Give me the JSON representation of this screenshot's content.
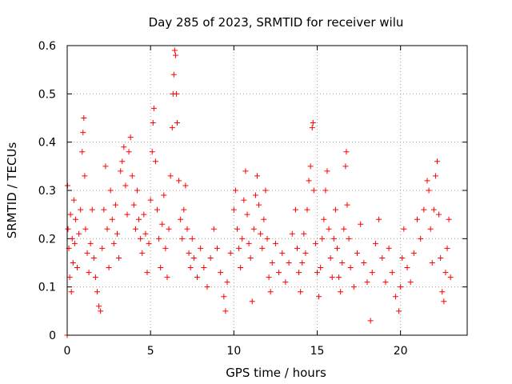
{
  "chart_data": {
    "type": "scatter",
    "title": "Day 285 of 2023, SRMTID for receiver wilu",
    "xlabel": "GPS time / hours",
    "ylabel": "SRMTID / TECUs",
    "xlim": [
      0,
      24
    ],
    "ylim": [
      0,
      0.6
    ],
    "grid": true,
    "marker": "plus",
    "series_color": "#ff0000",
    "x_ticks": [
      0,
      5,
      10,
      15,
      20
    ],
    "x_tick_labels": [
      "0",
      "5",
      "10",
      "15",
      "20"
    ],
    "y_ticks": [
      0,
      0.1,
      0.2,
      0.3,
      0.4,
      0.5,
      0.6
    ],
    "y_tick_labels": [
      "0",
      "0.1",
      "0.2",
      "0.3",
      "0.4",
      "0.5",
      "0.6"
    ],
    "series": [
      {
        "name": "SRMTID",
        "points": [
          [
            0.0,
            0.0
          ],
          [
            0.02,
            0.31
          ],
          [
            0.05,
            0.22
          ],
          [
            0.1,
            0.18
          ],
          [
            0.15,
            0.12
          ],
          [
            0.2,
            0.25
          ],
          [
            0.25,
            0.09
          ],
          [
            0.3,
            0.2
          ],
          [
            0.35,
            0.15
          ],
          [
            0.4,
            0.28
          ],
          [
            0.45,
            0.19
          ],
          [
            0.5,
            0.24
          ],
          [
            0.6,
            0.14
          ],
          [
            0.7,
            0.21
          ],
          [
            0.8,
            0.26
          ],
          [
            0.9,
            0.38
          ],
          [
            0.95,
            0.42
          ],
          [
            1.0,
            0.45
          ],
          [
            1.05,
            0.33
          ],
          [
            1.1,
            0.22
          ],
          [
            1.2,
            0.17
          ],
          [
            1.3,
            0.13
          ],
          [
            1.4,
            0.19
          ],
          [
            1.5,
            0.26
          ],
          [
            1.6,
            0.16
          ],
          [
            1.7,
            0.12
          ],
          [
            1.8,
            0.09
          ],
          [
            1.9,
            0.06
          ],
          [
            2.0,
            0.05
          ],
          [
            2.1,
            0.18
          ],
          [
            2.2,
            0.26
          ],
          [
            2.3,
            0.35
          ],
          [
            2.4,
            0.22
          ],
          [
            2.5,
            0.14
          ],
          [
            2.6,
            0.3
          ],
          [
            2.7,
            0.24
          ],
          [
            2.8,
            0.19
          ],
          [
            2.9,
            0.27
          ],
          [
            3.0,
            0.21
          ],
          [
            3.1,
            0.16
          ],
          [
            3.2,
            0.34
          ],
          [
            3.3,
            0.36
          ],
          [
            3.4,
            0.39
          ],
          [
            3.5,
            0.31
          ],
          [
            3.6,
            0.25
          ],
          [
            3.7,
            0.38
          ],
          [
            3.8,
            0.41
          ],
          [
            3.9,
            0.33
          ],
          [
            4.0,
            0.27
          ],
          [
            4.1,
            0.22
          ],
          [
            4.2,
            0.3
          ],
          [
            4.3,
            0.24
          ],
          [
            4.4,
            0.2
          ],
          [
            4.5,
            0.17
          ],
          [
            4.6,
            0.25
          ],
          [
            4.7,
            0.21
          ],
          [
            4.8,
            0.13
          ],
          [
            4.9,
            0.19
          ],
          [
            5.0,
            0.28
          ],
          [
            5.1,
            0.38
          ],
          [
            5.15,
            0.44
          ],
          [
            5.2,
            0.47
          ],
          [
            5.3,
            0.36
          ],
          [
            5.4,
            0.26
          ],
          [
            5.5,
            0.2
          ],
          [
            5.6,
            0.14
          ],
          [
            5.7,
            0.23
          ],
          [
            5.8,
            0.29
          ],
          [
            5.9,
            0.18
          ],
          [
            6.0,
            0.12
          ],
          [
            6.1,
            0.22
          ],
          [
            6.2,
            0.33
          ],
          [
            6.3,
            0.43
          ],
          [
            6.35,
            0.5
          ],
          [
            6.4,
            0.54
          ],
          [
            6.45,
            0.59
          ],
          [
            6.5,
            0.58
          ],
          [
            6.55,
            0.5
          ],
          [
            6.6,
            0.44
          ],
          [
            6.7,
            0.32
          ],
          [
            6.8,
            0.24
          ],
          [
            6.9,
            0.2
          ],
          [
            7.0,
            0.26
          ],
          [
            7.1,
            0.31
          ],
          [
            7.2,
            0.22
          ],
          [
            7.3,
            0.17
          ],
          [
            7.4,
            0.14
          ],
          [
            7.5,
            0.2
          ],
          [
            7.6,
            0.16
          ],
          [
            7.8,
            0.12
          ],
          [
            8.0,
            0.18
          ],
          [
            8.2,
            0.14
          ],
          [
            8.4,
            0.1
          ],
          [
            8.6,
            0.16
          ],
          [
            8.8,
            0.22
          ],
          [
            9.0,
            0.18
          ],
          [
            9.2,
            0.13
          ],
          [
            9.4,
            0.08
          ],
          [
            9.5,
            0.05
          ],
          [
            9.6,
            0.11
          ],
          [
            9.8,
            0.17
          ],
          [
            10.0,
            0.26
          ],
          [
            10.1,
            0.3
          ],
          [
            10.2,
            0.22
          ],
          [
            10.3,
            0.18
          ],
          [
            10.4,
            0.14
          ],
          [
            10.5,
            0.2
          ],
          [
            10.6,
            0.28
          ],
          [
            10.7,
            0.34
          ],
          [
            10.8,
            0.25
          ],
          [
            10.9,
            0.19
          ],
          [
            11.0,
            0.16
          ],
          [
            11.1,
            0.07
          ],
          [
            11.2,
            0.22
          ],
          [
            11.3,
            0.29
          ],
          [
            11.4,
            0.33
          ],
          [
            11.5,
            0.27
          ],
          [
            11.6,
            0.21
          ],
          [
            11.7,
            0.18
          ],
          [
            11.8,
            0.24
          ],
          [
            11.9,
            0.3
          ],
          [
            12.0,
            0.2
          ],
          [
            12.1,
            0.12
          ],
          [
            12.2,
            0.09
          ],
          [
            12.3,
            0.15
          ],
          [
            12.5,
            0.19
          ],
          [
            12.7,
            0.13
          ],
          [
            12.9,
            0.17
          ],
          [
            13.1,
            0.11
          ],
          [
            13.3,
            0.15
          ],
          [
            13.5,
            0.21
          ],
          [
            13.7,
            0.26
          ],
          [
            13.8,
            0.18
          ],
          [
            13.9,
            0.13
          ],
          [
            14.0,
            0.09
          ],
          [
            14.1,
            0.15
          ],
          [
            14.2,
            0.21
          ],
          [
            14.3,
            0.17
          ],
          [
            14.4,
            0.26
          ],
          [
            14.5,
            0.32
          ],
          [
            14.6,
            0.35
          ],
          [
            14.7,
            0.43
          ],
          [
            14.75,
            0.44
          ],
          [
            14.8,
            0.3
          ],
          [
            14.9,
            0.19
          ],
          [
            15.0,
            0.13
          ],
          [
            15.1,
            0.08
          ],
          [
            15.2,
            0.14
          ],
          [
            15.3,
            0.2
          ],
          [
            15.4,
            0.24
          ],
          [
            15.5,
            0.3
          ],
          [
            15.6,
            0.34
          ],
          [
            15.7,
            0.22
          ],
          [
            15.8,
            0.16
          ],
          [
            15.9,
            0.12
          ],
          [
            16.0,
            0.2
          ],
          [
            16.1,
            0.26
          ],
          [
            16.2,
            0.18
          ],
          [
            16.3,
            0.12
          ],
          [
            16.4,
            0.09
          ],
          [
            16.5,
            0.15
          ],
          [
            16.6,
            0.22
          ],
          [
            16.7,
            0.35
          ],
          [
            16.75,
            0.38
          ],
          [
            16.8,
            0.27
          ],
          [
            16.9,
            0.2
          ],
          [
            17.0,
            0.14
          ],
          [
            17.2,
            0.1
          ],
          [
            17.4,
            0.17
          ],
          [
            17.6,
            0.23
          ],
          [
            17.8,
            0.15
          ],
          [
            18.0,
            0.11
          ],
          [
            18.2,
            0.03
          ],
          [
            18.3,
            0.13
          ],
          [
            18.5,
            0.19
          ],
          [
            18.7,
            0.24
          ],
          [
            18.9,
            0.16
          ],
          [
            19.1,
            0.11
          ],
          [
            19.3,
            0.18
          ],
          [
            19.5,
            0.13
          ],
          [
            19.7,
            0.08
          ],
          [
            19.9,
            0.05
          ],
          [
            20.0,
            0.1
          ],
          [
            20.1,
            0.16
          ],
          [
            20.2,
            0.22
          ],
          [
            20.4,
            0.14
          ],
          [
            20.6,
            0.11
          ],
          [
            20.8,
            0.17
          ],
          [
            21.0,
            0.24
          ],
          [
            21.2,
            0.2
          ],
          [
            21.4,
            0.26
          ],
          [
            21.6,
            0.32
          ],
          [
            21.7,
            0.3
          ],
          [
            21.8,
            0.22
          ],
          [
            21.9,
            0.15
          ],
          [
            22.0,
            0.26
          ],
          [
            22.1,
            0.33
          ],
          [
            22.2,
            0.36
          ],
          [
            22.3,
            0.25
          ],
          [
            22.4,
            0.16
          ],
          [
            22.5,
            0.09
          ],
          [
            22.6,
            0.07
          ],
          [
            22.7,
            0.13
          ],
          [
            22.8,
            0.18
          ],
          [
            22.9,
            0.24
          ],
          [
            23.0,
            0.12
          ]
        ]
      }
    ]
  }
}
